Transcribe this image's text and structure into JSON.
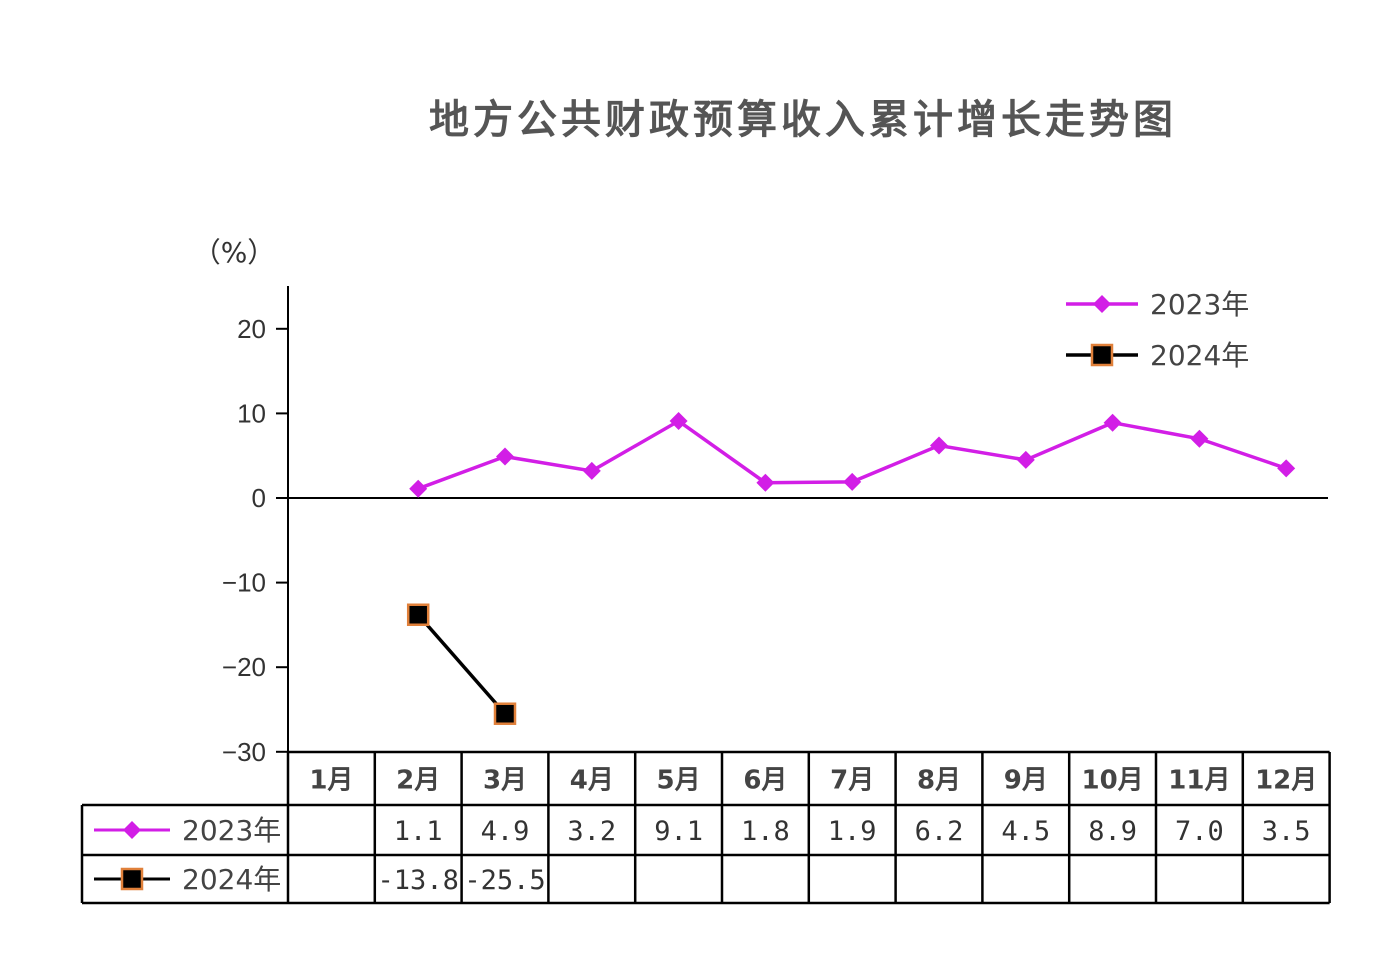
{
  "chart_data": {
    "type": "line",
    "title": "地方公共财政预算收入累计增长走势图",
    "ylabel": "（%）",
    "ylim": [
      -30,
      25
    ],
    "yticks": [
      20,
      10,
      0,
      -10,
      -20,
      -30
    ],
    "ytick_labels": [
      "20",
      "10",
      "0",
      "−10",
      "−20",
      "−30"
    ],
    "categories": [
      "1月",
      "2月",
      "3月",
      "4月",
      "5月",
      "6月",
      "7月",
      "8月",
      "9月",
      "10月",
      "11月",
      "12月"
    ],
    "legend_position": "top-right",
    "series": [
      {
        "name": "2023年",
        "color": "#d21ee6",
        "marker": "diamond",
        "values": [
          null,
          1.1,
          4.9,
          3.2,
          9.1,
          1.8,
          1.9,
          6.2,
          4.5,
          8.9,
          7.0,
          3.5
        ],
        "labels": [
          "",
          "1.1",
          "4.9",
          "3.2",
          "9.1",
          "1.8",
          "1.9",
          "6.2",
          "4.5",
          "8.9",
          "7.0",
          "3.5"
        ]
      },
      {
        "name": "2024年",
        "color": "#000000",
        "marker_fill": "#000000",
        "marker_edge": "#e0803a",
        "marker": "square",
        "values": [
          null,
          -13.8,
          -25.5,
          null,
          null,
          null,
          null,
          null,
          null,
          null,
          null,
          null
        ],
        "labels": [
          "",
          "-13.8",
          "-25.5",
          "",
          "",
          "",
          "",
          "",
          "",
          "",
          "",
          ""
        ]
      }
    ],
    "data_table": true
  }
}
